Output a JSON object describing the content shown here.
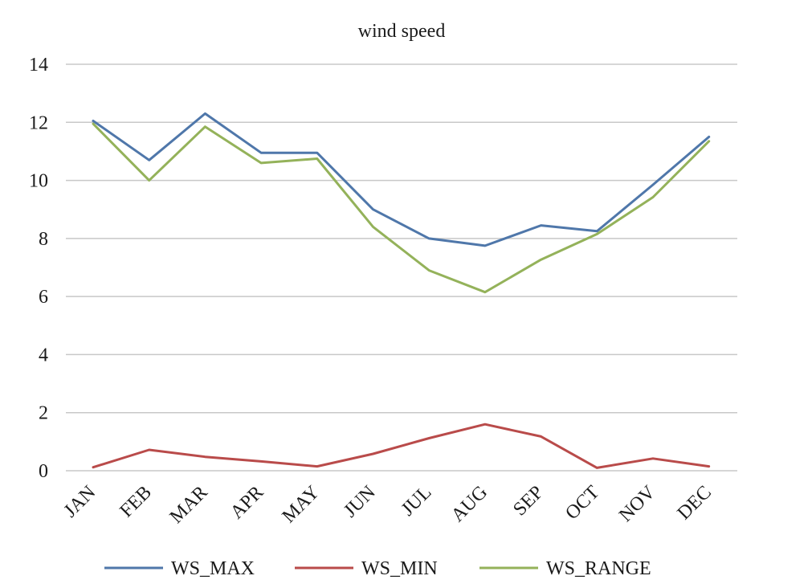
{
  "chart_data": {
    "type": "line",
    "title": "wind speed",
    "categories": [
      "JAN",
      "FEB",
      "MAR",
      "APR",
      "MAY",
      "JUN",
      "JUL",
      "AUG",
      "SEP",
      "OCT",
      "NOV",
      "DEC"
    ],
    "series": [
      {
        "name": "WS_MAX",
        "color": "#4f77aa",
        "values": [
          12.05,
          10.7,
          12.3,
          10.95,
          10.95,
          9.0,
          8.0,
          7.75,
          8.45,
          8.25,
          9.85,
          11.5
        ]
      },
      {
        "name": "WS_MIN",
        "color": "#b94b4a",
        "values": [
          0.12,
          0.72,
          0.48,
          0.32,
          0.15,
          0.58,
          1.12,
          1.6,
          1.18,
          0.1,
          0.42,
          0.15
        ]
      },
      {
        "name": "WS_RANGE",
        "color": "#94b25a",
        "values": [
          11.95,
          10.0,
          11.85,
          10.6,
          10.75,
          8.4,
          6.9,
          6.15,
          7.27,
          8.15,
          9.42,
          11.35
        ]
      }
    ],
    "y_ticks": [
      "0",
      "2",
      "4",
      "6",
      "8",
      "10",
      "12",
      "14"
    ],
    "ylim": [
      0,
      14
    ],
    "xlabel": "",
    "ylabel": "",
    "grid": true,
    "legend_position": "bottom"
  }
}
